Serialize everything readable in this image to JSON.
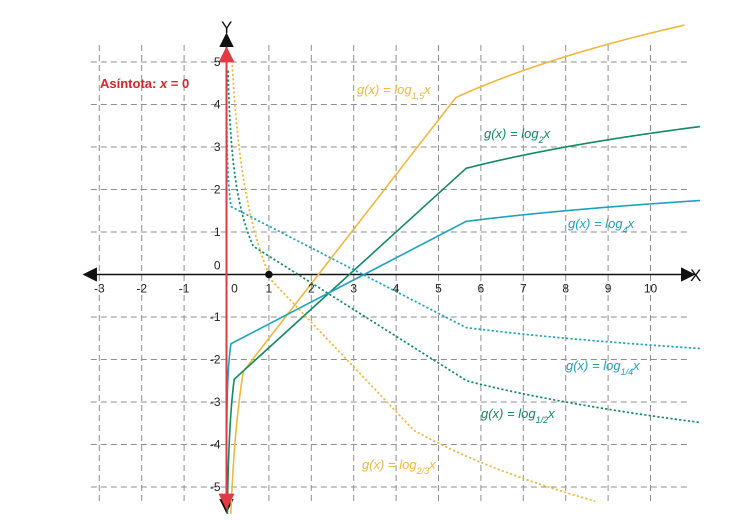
{
  "chart_data": {
    "type": "line",
    "title": "",
    "xlabel": "X",
    "ylabel": "Y",
    "xlim": [
      -3.2,
      10.9
    ],
    "ylim": [
      -5.4,
      5.4
    ],
    "grid": true,
    "x_ticks": [
      "-3",
      "-2",
      "-1",
      "0",
      "1",
      "2",
      "3",
      "4",
      "5",
      "6",
      "7",
      "8",
      "9",
      "10"
    ],
    "y_ticks": [
      "5",
      "4",
      "3",
      "2",
      "1",
      "0",
      "-1",
      "-2",
      "-3",
      "-4",
      "-5"
    ],
    "asymptote": {
      "label_prefix": "Asíntota: ",
      "label_var": "x",
      "label_suffix": " = 0",
      "x": 0,
      "color": "#e03a45"
    },
    "common_point": {
      "x": 1,
      "y": 0
    },
    "series": [
      {
        "base": 1.5,
        "color": "#f0b83c",
        "style": "solid",
        "x_range": [
          0.015,
          10.8
        ],
        "label": {
          "prefix": "g(x) = log",
          "sub": "1,5",
          "suffix": "x"
        }
      },
      {
        "base": 2,
        "color": "#0f8a63",
        "style": "solid",
        "x_range": [
          0.003,
          11.3
        ],
        "label": {
          "prefix": "g(x) = log",
          "sub": "2",
          "suffix": "x"
        }
      },
      {
        "base": 4,
        "color": "#1aa3bf",
        "style": "solid",
        "x_range": [
          0.001,
          11.3
        ],
        "label": {
          "prefix": "g(x) = log",
          "sub": "4",
          "suffix": "x"
        }
      },
      {
        "base": 0.25,
        "color": "#1aa3bf",
        "style": "dotted",
        "x_range": [
          0.0011,
          11.3
        ],
        "label": {
          "prefix": "g(x) = log",
          "sub": "1/4",
          "suffix": "x"
        }
      },
      {
        "base": 0.5,
        "color": "#0f8a63",
        "style": "dotted",
        "x_range": [
          0.036,
          11.3
        ],
        "label": {
          "prefix": "g(x) = log",
          "sub": "1/2",
          "suffix": "x"
        }
      },
      {
        "base": 0.6667,
        "color": "#f0b83c",
        "style": "dotted",
        "x_range": [
          0.13,
          8.7
        ],
        "label": {
          "prefix": "g(x) = log",
          "sub": "2/3",
          "suffix": "x"
        }
      }
    ]
  }
}
